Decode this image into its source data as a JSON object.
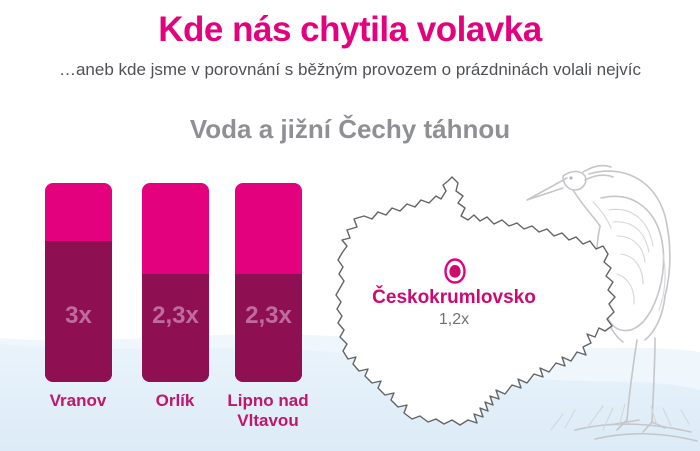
{
  "page": {
    "title": "Kde nás chytila volavka",
    "subtitle": "…aneb kde jsme v porovnání s běžným provozem o prázdninách volali nejvíc",
    "section_title": "Voda a jižní Čechy táhnou"
  },
  "chart_data": {
    "type": "bar",
    "title": "Voda a jižní Čechy táhnou",
    "categories": [
      "Vranov",
      "Orlík",
      "Lipno nad Vltavou"
    ],
    "values": [
      3,
      2.3,
      2.3
    ],
    "value_labels": [
      "3x",
      "2,3x",
      "2,3x"
    ],
    "unit": "multiple of normal call volume",
    "xlabel": "",
    "ylabel": "",
    "ylim": [
      0,
      4.2
    ],
    "grid": false,
    "legend": "none"
  },
  "map": {
    "pin_icon": "map-pin",
    "location_label": "Českokrumlovsko",
    "location_value": "1,2x"
  },
  "colors": {
    "accent_bright": "#e4017d",
    "bar_dark": "#8e1053",
    "bar_value_text": "#bf6ba0",
    "category_label": "#c2156b",
    "map_label": "#cb0a72",
    "heading_gray": "#8f9094",
    "subtitle_gray": "#4f5155",
    "map_outline": "#636467",
    "heron_sketch": "#c5c6c9",
    "wave_blue": "#e3effa"
  }
}
